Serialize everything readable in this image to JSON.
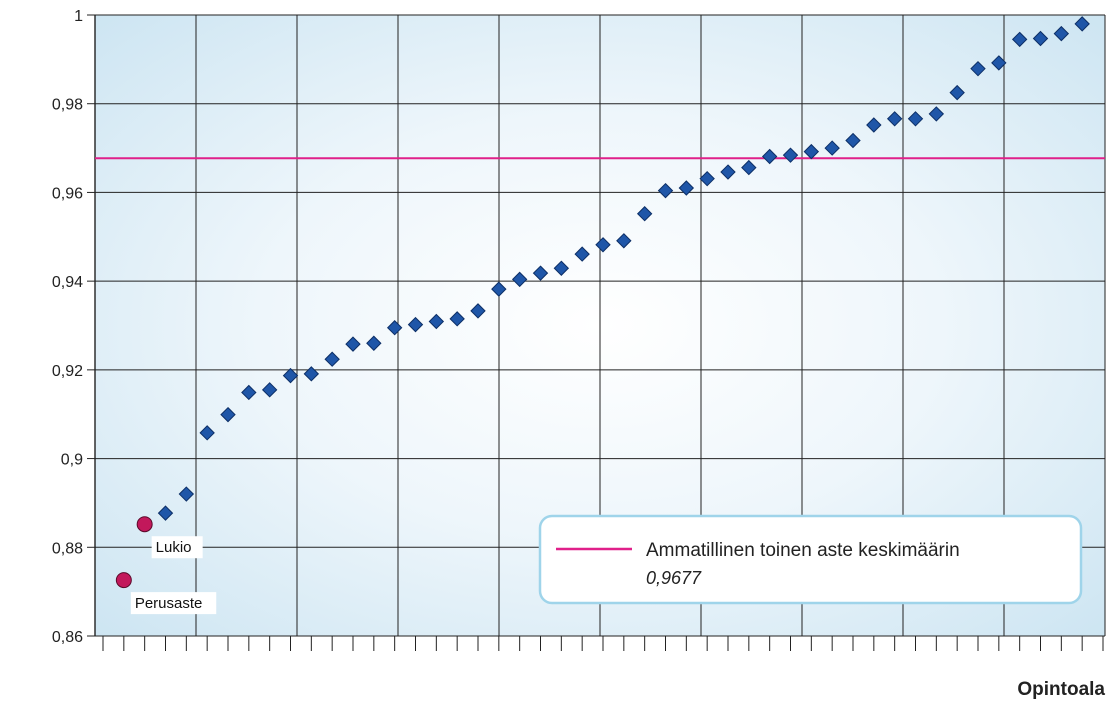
{
  "chart_data": {
    "type": "scatter",
    "title": "",
    "xlabel": "Opintoala",
    "ylabel": "",
    "ylim": [
      0.86,
      1.0
    ],
    "yticks": [
      "0,86",
      "0,88",
      "0,9",
      "0,92",
      "0,94",
      "0,96",
      "0,98",
      "1"
    ],
    "grid": true,
    "series": [
      {
        "marker": "diamond",
        "color": "#1f56a8",
        "values": [
          0.8877,
          0.892,
          0.9058,
          0.9099,
          0.9149,
          0.9155,
          0.9187,
          0.9191,
          0.9224,
          0.9258,
          0.926,
          0.9295,
          0.9302,
          0.9309,
          0.9315,
          0.9333,
          0.9382,
          0.9404,
          0.9418,
          0.9429,
          0.9461,
          0.9482,
          0.9491,
          0.9552,
          0.9604,
          0.961,
          0.9631,
          0.9646,
          0.9656,
          0.9681,
          0.9684,
          0.9692,
          0.97,
          0.9717,
          0.9752,
          0.9766,
          0.9766,
          0.9777,
          0.9825,
          0.9879,
          0.9892,
          0.9945,
          0.9947,
          0.9958,
          0.998
        ]
      }
    ],
    "points": [
      {
        "label": "Lukio",
        "value": 0.8852,
        "color": "#c2185b"
      },
      {
        "label": "Perusaste",
        "value": 0.8726,
        "color": "#c2185b"
      }
    ],
    "reference_line": {
      "value": 0.9677,
      "label": "Ammatillinen toinen aste keskimäärin",
      "value_text": "0,9677",
      "color": "#e0208a"
    },
    "legend_position": "bottom-right"
  }
}
